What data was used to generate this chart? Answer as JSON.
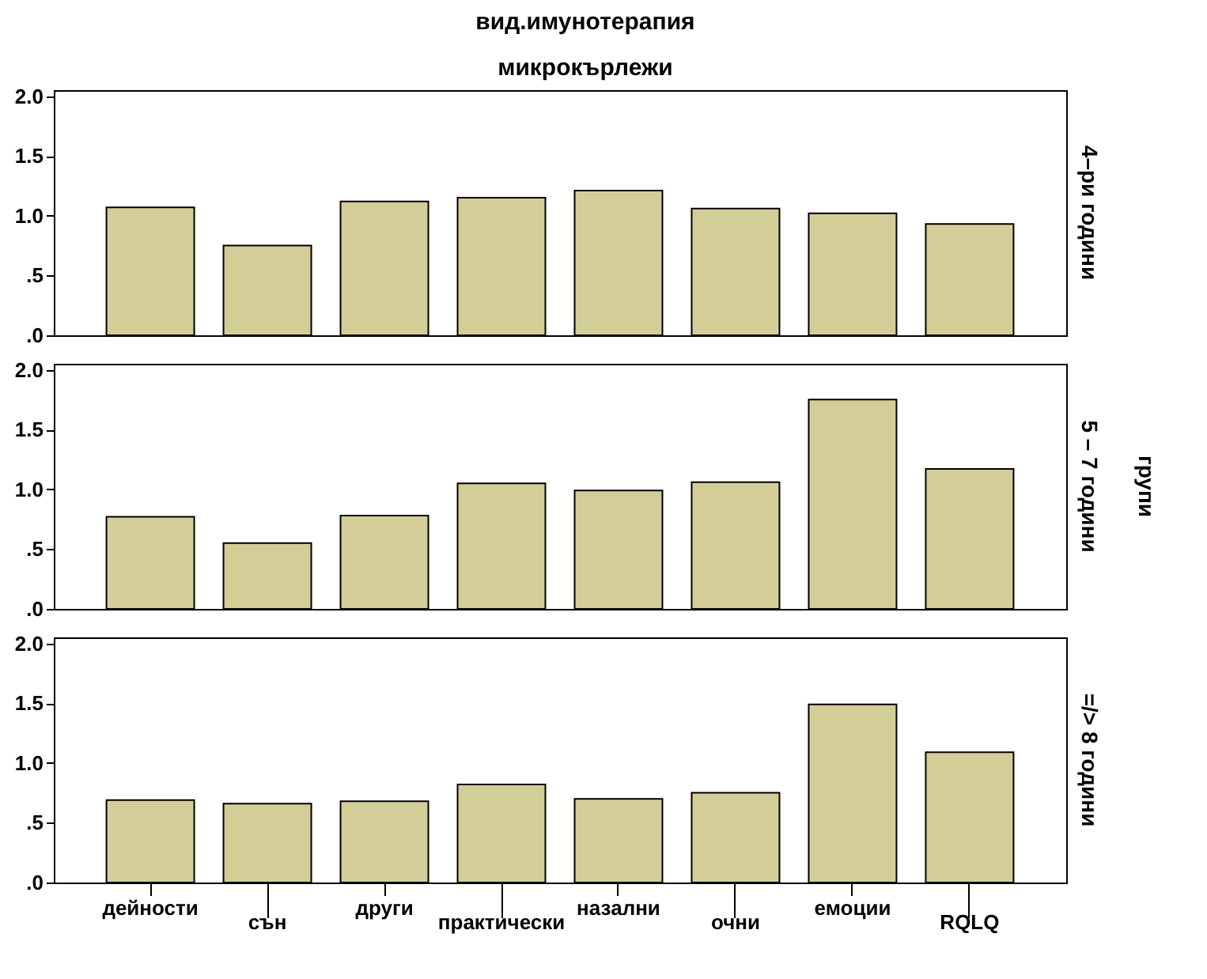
{
  "chart_data": [
    {
      "type": "bar",
      "title": "вид.имунотерапия",
      "subtitle": "микрокърлежи",
      "annotations": [
        "4–ри години"
      ],
      "categories": [
        null,
        null,
        null,
        null,
        null,
        null,
        null,
        null
      ],
      "values": [
        1.07,
        0.75,
        1.12,
        1.15,
        1.21,
        1.06,
        1.02,
        0.93
      ],
      "color": "#d3ce98",
      "ylim": [
        0,
        2.05
      ],
      "yticks": [
        {
          "value": 0,
          "label": ".0"
        },
        {
          "value": 0.5,
          "label": ".5"
        },
        {
          "value": 1,
          "label": "1.0"
        },
        {
          "value": 1.5,
          "label": "1.5"
        },
        {
          "value": 2,
          "label": "2.0"
        }
      ],
      "tick_labels": "y"
    },
    {
      "type": "bar",
      "annotations": [
        "5 – 7 години",
        "групи"
      ],
      "categories": [
        null,
        null,
        null,
        null,
        null,
        null,
        null,
        null
      ],
      "values": [
        0.77,
        0.55,
        0.78,
        1.05,
        0.99,
        1.06,
        1.75,
        1.17
      ],
      "color": "#d3ce98",
      "ylim": [
        0,
        2.05
      ],
      "yticks": [
        {
          "value": 0,
          "label": ".0"
        },
        {
          "value": 0.5,
          "label": ".5"
        },
        {
          "value": 1,
          "label": "1.0"
        },
        {
          "value": 1.5,
          "label": "1.5"
        },
        {
          "value": 2,
          "label": "2.0"
        }
      ],
      "tick_labels": "y"
    },
    {
      "type": "bar",
      "annotations": [
        "=/> 8 години"
      ],
      "categories": [
        "дейности",
        "сън",
        "други",
        "практически",
        "назални",
        "очни",
        "емоции",
        "RQLQ"
      ],
      "values": [
        0.69,
        0.66,
        0.68,
        0.82,
        0.7,
        0.75,
        1.49,
        1.09
      ],
      "color": "#d3ce98",
      "ylim": [
        0,
        2.05
      ],
      "yticks": [
        {
          "value": 0,
          "label": ".0"
        },
        {
          "value": 0.5,
          "label": ".5"
        },
        {
          "value": 1,
          "label": "1.0"
        },
        {
          "value": 1.5,
          "label": "1.5"
        },
        {
          "value": 2,
          "label": "2.0"
        }
      ]
    }
  ]
}
